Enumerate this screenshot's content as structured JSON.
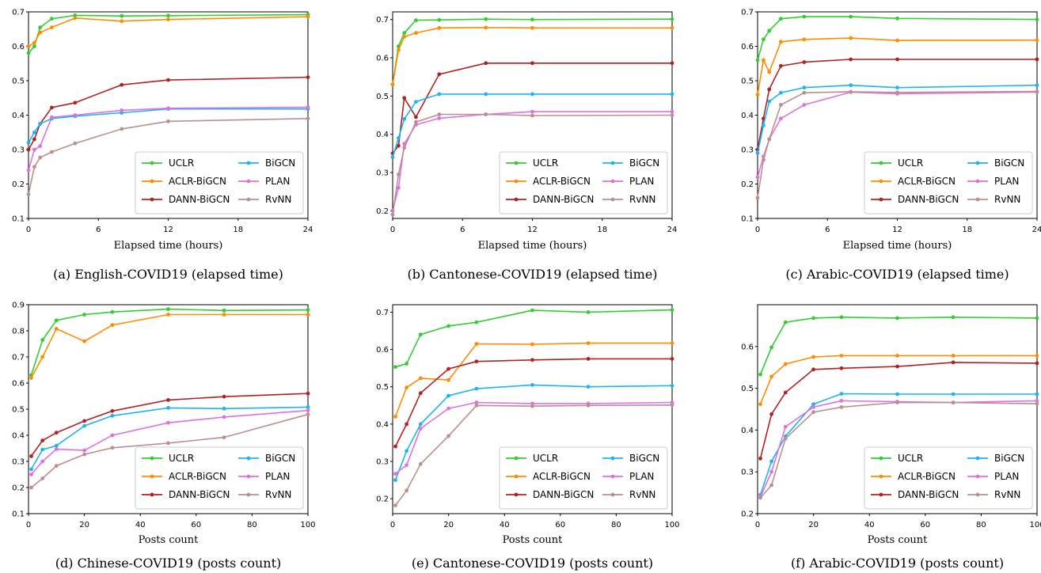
{
  "colors": {
    "UCLR": "#33cc33",
    "ACLR-BiGCN": "#ff8c00",
    "DANN-BiGCN": "#b22222",
    "BiGCN": "#1eb4f0",
    "PLAN": "#e070e0",
    "RvNN": "#bc8f8f"
  },
  "chart_data": [
    {
      "type": "line",
      "caption": "(a)  English-COVID19 (elapsed time)",
      "xlabel": "Elapsed time (hours)",
      "xlim": [
        0,
        24
      ],
      "ylim": [
        0.1,
        0.7
      ],
      "xticks": [
        0,
        6,
        12,
        18,
        24
      ],
      "yticks": [
        0.1,
        0.2,
        0.3,
        0.4,
        0.5,
        0.6,
        0.7
      ],
      "legend_placement": "bottom-right",
      "x": [
        0,
        0.5,
        1,
        2,
        4,
        8,
        12,
        24
      ],
      "series": [
        {
          "name": "UCLR",
          "values": [
            0.58,
            0.6,
            0.655,
            0.68,
            0.69,
            0.688,
            0.689,
            0.692
          ]
        },
        {
          "name": "ACLR-BiGCN",
          "values": [
            0.6,
            0.61,
            0.64,
            0.655,
            0.682,
            0.673,
            0.678,
            0.686
          ]
        },
        {
          "name": "DANN-BiGCN",
          "values": [
            0.3,
            0.33,
            0.375,
            0.422,
            0.436,
            0.488,
            0.502,
            0.51
          ]
        },
        {
          "name": "BiGCN",
          "values": [
            0.32,
            0.35,
            0.375,
            0.39,
            0.397,
            0.407,
            0.418,
            0.418
          ]
        },
        {
          "name": "PLAN",
          "values": [
            0.24,
            0.3,
            0.31,
            0.394,
            0.4,
            0.414,
            0.42,
            0.423
          ]
        },
        {
          "name": "RvNN",
          "values": [
            0.17,
            0.25,
            0.277,
            0.293,
            0.318,
            0.36,
            0.382,
            0.39
          ]
        }
      ]
    },
    {
      "type": "line",
      "caption": "(b)  Cantonese-COVID19 (elapsed time)",
      "xlabel": "Elapsed time (hours)",
      "xlim": [
        0,
        24
      ],
      "ylim": [
        0.18,
        0.72
      ],
      "xticks": [
        0,
        6,
        12,
        18,
        24
      ],
      "yticks": [
        0.2,
        0.3,
        0.4,
        0.5,
        0.6,
        0.7
      ],
      "legend_placement": "bottom-right",
      "x": [
        0,
        0.5,
        1,
        2,
        4,
        8,
        12,
        24
      ],
      "series": [
        {
          "name": "UCLR",
          "values": [
            0.53,
            0.63,
            0.665,
            0.698,
            0.699,
            0.701,
            0.7,
            0.701
          ]
        },
        {
          "name": "ACLR-BiGCN",
          "values": [
            0.53,
            0.62,
            0.655,
            0.665,
            0.678,
            0.679,
            0.678,
            0.678
          ]
        },
        {
          "name": "DANN-BiGCN",
          "values": [
            0.35,
            0.37,
            0.495,
            0.445,
            0.557,
            0.586,
            0.586,
            0.586
          ]
        },
        {
          "name": "BiGCN",
          "values": [
            0.34,
            0.39,
            0.44,
            0.485,
            0.505,
            0.505,
            0.505,
            0.505
          ]
        },
        {
          "name": "PLAN",
          "values": [
            0.2,
            0.26,
            0.375,
            0.425,
            0.442,
            0.452,
            0.459,
            0.459
          ]
        },
        {
          "name": "RvNN",
          "values": [
            0.19,
            0.295,
            0.365,
            0.432,
            0.452,
            0.452,
            0.449,
            0.45
          ]
        }
      ]
    },
    {
      "type": "line",
      "caption": "(c)  Arabic-COVID19 (elapsed time)",
      "xlabel": "Elapsed time (hours)",
      "xlim": [
        0,
        24
      ],
      "ylim": [
        0.1,
        0.7
      ],
      "xticks": [
        0,
        6,
        12,
        18,
        24
      ],
      "yticks": [
        0.1,
        0.2,
        0.3,
        0.4,
        0.5,
        0.6,
        0.7
      ],
      "legend_placement": "bottom-right",
      "x": [
        0,
        0.5,
        1,
        2,
        4,
        8,
        12,
        24
      ],
      "series": [
        {
          "name": "UCLR",
          "values": [
            0.56,
            0.62,
            0.645,
            0.68,
            0.686,
            0.686,
            0.681,
            0.678
          ]
        },
        {
          "name": "ACLR-BiGCN",
          "values": [
            0.46,
            0.56,
            0.525,
            0.613,
            0.62,
            0.624,
            0.617,
            0.618
          ]
        },
        {
          "name": "DANN-BiGCN",
          "values": [
            0.3,
            0.39,
            0.475,
            0.543,
            0.554,
            0.562,
            0.562,
            0.562
          ]
        },
        {
          "name": "BiGCN",
          "values": [
            0.29,
            0.37,
            0.44,
            0.465,
            0.48,
            0.487,
            0.48,
            0.487
          ]
        },
        {
          "name": "PLAN",
          "values": [
            0.22,
            0.28,
            0.33,
            0.39,
            0.43,
            0.467,
            0.462,
            0.467
          ]
        },
        {
          "name": "RvNN",
          "values": [
            0.16,
            0.27,
            0.33,
            0.43,
            0.465,
            0.468,
            0.466,
            0.469
          ]
        }
      ]
    },
    {
      "type": "line",
      "caption": "(d)  Chinese-COVID19 (posts count)",
      "xlabel": "Posts count",
      "xlim": [
        0,
        100
      ],
      "ylim": [
        0.1,
        0.9
      ],
      "xticks": [
        0,
        20,
        40,
        60,
        80,
        100
      ],
      "yticks": [
        0.1,
        0.2,
        0.3,
        0.4,
        0.5,
        0.6,
        0.7,
        0.8,
        0.9
      ],
      "legend_placement": "bottom-right",
      "x": [
        1,
        5,
        10,
        20,
        30,
        50,
        70,
        100
      ],
      "series": [
        {
          "name": "UCLR",
          "values": [
            0.63,
            0.765,
            0.84,
            0.862,
            0.872,
            0.883,
            0.878,
            0.88
          ]
        },
        {
          "name": "ACLR-BiGCN",
          "values": [
            0.62,
            0.7,
            0.808,
            0.76,
            0.822,
            0.862,
            0.862,
            0.862
          ]
        },
        {
          "name": "DANN-BiGCN",
          "values": [
            0.32,
            0.38,
            0.41,
            0.455,
            0.493,
            0.535,
            0.548,
            0.56
          ]
        },
        {
          "name": "BiGCN",
          "values": [
            0.27,
            0.345,
            0.36,
            0.436,
            0.475,
            0.505,
            0.502,
            0.508
          ]
        },
        {
          "name": "PLAN",
          "values": [
            0.25,
            0.3,
            0.347,
            0.342,
            0.4,
            0.448,
            0.47,
            0.495
          ]
        },
        {
          "name": "RvNN",
          "values": [
            0.2,
            0.235,
            0.283,
            0.327,
            0.352,
            0.37,
            0.392,
            0.48
          ]
        }
      ]
    },
    {
      "type": "line",
      "caption": "(e)  Cantonese-COVID19 (posts count)",
      "xlabel": "Posts count",
      "xlim": [
        0,
        100
      ],
      "ylim": [
        0.16,
        0.72
      ],
      "xticks": [
        0,
        20,
        40,
        60,
        80,
        100
      ],
      "yticks": [
        0.2,
        0.3,
        0.4,
        0.5,
        0.6,
        0.7
      ],
      "legend_placement": "bottom-right",
      "x": [
        1,
        5,
        10,
        20,
        30,
        50,
        70,
        100
      ],
      "series": [
        {
          "name": "UCLR",
          "values": [
            0.553,
            0.562,
            0.64,
            0.663,
            0.673,
            0.705,
            0.7,
            0.706
          ]
        },
        {
          "name": "ACLR-BiGCN",
          "values": [
            0.42,
            0.498,
            0.523,
            0.518,
            0.615,
            0.614,
            0.617,
            0.617
          ]
        },
        {
          "name": "DANN-BiGCN",
          "values": [
            0.34,
            0.4,
            0.483,
            0.548,
            0.568,
            0.572,
            0.575,
            0.575
          ]
        },
        {
          "name": "BiGCN",
          "values": [
            0.25,
            0.328,
            0.4,
            0.476,
            0.495,
            0.505,
            0.5,
            0.503
          ]
        },
        {
          "name": "PLAN",
          "values": [
            0.267,
            0.29,
            0.388,
            0.442,
            0.458,
            0.455,
            0.455,
            0.458
          ]
        },
        {
          "name": "RvNN",
          "values": [
            0.182,
            0.222,
            0.293,
            0.368,
            0.45,
            0.448,
            0.45,
            0.451
          ]
        }
      ]
    },
    {
      "type": "line",
      "caption": "(f)  Arabic-COVID19 (posts count)",
      "xlabel": "Posts count",
      "xlim": [
        0,
        100
      ],
      "ylim": [
        0.2,
        0.7
      ],
      "xticks": [
        0,
        20,
        40,
        60,
        80,
        100
      ],
      "yticks": [
        0.2,
        0.3,
        0.4,
        0.5,
        0.6
      ],
      "legend_placement": "bottom-right",
      "x": [
        1,
        5,
        10,
        20,
        30,
        50,
        70,
        100
      ],
      "series": [
        {
          "name": "UCLR",
          "values": [
            0.533,
            0.598,
            0.658,
            0.668,
            0.67,
            0.668,
            0.67,
            0.668
          ]
        },
        {
          "name": "ACLR-BiGCN",
          "values": [
            0.462,
            0.528,
            0.558,
            0.575,
            0.578,
            0.578,
            0.578,
            0.578
          ]
        },
        {
          "name": "DANN-BiGCN",
          "values": [
            0.332,
            0.438,
            0.49,
            0.545,
            0.548,
            0.552,
            0.562,
            0.56
          ]
        },
        {
          "name": "BiGCN",
          "values": [
            0.245,
            0.325,
            0.385,
            0.462,
            0.487,
            0.486,
            0.486,
            0.486
          ]
        },
        {
          "name": "PLAN",
          "values": [
            0.24,
            0.3,
            0.408,
            0.455,
            0.47,
            0.468,
            0.466,
            0.47
          ]
        },
        {
          "name": "RvNN",
          "values": [
            0.238,
            0.268,
            0.38,
            0.443,
            0.455,
            0.466,
            0.466,
            0.463
          ]
        }
      ]
    }
  ]
}
